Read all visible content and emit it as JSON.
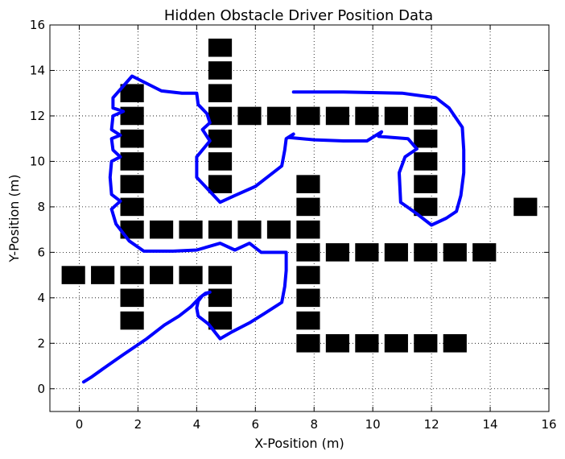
{
  "chart_data": {
    "type": "scatter",
    "title": "Hidden Obstacle Driver Position Data",
    "xlabel": "X-Position (m)",
    "ylabel": "Y-Position (m)",
    "xlim": [
      -1,
      16
    ],
    "ylim": [
      -1,
      16
    ],
    "xticks": [
      0,
      2,
      4,
      6,
      8,
      10,
      12,
      14,
      16
    ],
    "yticks": [
      0,
      2,
      4,
      6,
      8,
      10,
      12,
      14,
      16
    ],
    "grid": true,
    "obstacle_size": [
      0.8,
      0.8
    ],
    "obstacle_color": "#000000",
    "path_color": "#0000ff",
    "obstacles": [
      [
        4.8,
        15
      ],
      [
        4.8,
        14
      ],
      [
        4.8,
        13
      ],
      [
        4.8,
        12
      ],
      [
        4.8,
        11
      ],
      [
        4.8,
        10
      ],
      [
        4.8,
        9
      ],
      [
        1.8,
        13
      ],
      [
        1.8,
        12
      ],
      [
        1.8,
        11
      ],
      [
        1.8,
        10
      ],
      [
        1.8,
        9
      ],
      [
        1.8,
        8
      ],
      [
        1.8,
        7
      ],
      [
        2.8,
        7
      ],
      [
        3.8,
        7
      ],
      [
        4.8,
        7
      ],
      [
        5.8,
        7
      ],
      [
        6.8,
        7
      ],
      [
        7.8,
        7
      ],
      [
        5.8,
        12
      ],
      [
        6.8,
        12
      ],
      [
        7.8,
        12
      ],
      [
        8.8,
        12
      ],
      [
        9.8,
        12
      ],
      [
        10.8,
        12
      ],
      [
        11.8,
        12
      ],
      [
        11.8,
        11
      ],
      [
        11.8,
        10
      ],
      [
        11.8,
        9
      ],
      [
        11.8,
        8
      ],
      [
        15.2,
        8
      ],
      [
        7.8,
        9
      ],
      [
        7.8,
        8
      ],
      [
        7.8,
        6
      ],
      [
        7.8,
        5
      ],
      [
        7.8,
        4
      ],
      [
        7.8,
        3
      ],
      [
        7.8,
        2
      ],
      [
        8.8,
        6
      ],
      [
        9.8,
        6
      ],
      [
        10.8,
        6
      ],
      [
        11.8,
        6
      ],
      [
        12.8,
        6
      ],
      [
        13.8,
        6
      ],
      [
        8.8,
        2
      ],
      [
        9.8,
        2
      ],
      [
        10.8,
        2
      ],
      [
        11.8,
        2
      ],
      [
        12.8,
        2
      ],
      [
        -0.2,
        5
      ],
      [
        0.8,
        5
      ],
      [
        1.8,
        5
      ],
      [
        2.8,
        5
      ],
      [
        3.8,
        5
      ],
      [
        4.8,
        5
      ],
      [
        1.8,
        4
      ],
      [
        1.8,
        3
      ],
      [
        4.8,
        4
      ],
      [
        4.8,
        3
      ]
    ],
    "path": [
      [
        0.15,
        0.3
      ],
      [
        0.4,
        0.5
      ],
      [
        1.0,
        1.05
      ],
      [
        1.5,
        1.5
      ],
      [
        2.3,
        2.2
      ],
      [
        2.9,
        2.8
      ],
      [
        3.4,
        3.2
      ],
      [
        3.8,
        3.6
      ],
      [
        4.1,
        4.0
      ],
      [
        4.3,
        4.2
      ],
      [
        4.45,
        4.25
      ],
      [
        4.2,
        4.1
      ],
      [
        4.05,
        3.85
      ],
      [
        4.0,
        3.55
      ],
      [
        4.05,
        3.2
      ],
      [
        4.4,
        2.85
      ],
      [
        4.8,
        2.2
      ],
      [
        5.2,
        2.5
      ],
      [
        5.8,
        2.9
      ],
      [
        6.3,
        3.3
      ],
      [
        6.9,
        3.8
      ],
      [
        7.0,
        4.5
      ],
      [
        7.05,
        5.2
      ],
      [
        7.05,
        6.0
      ],
      [
        6.2,
        6.0
      ],
      [
        5.8,
        6.4
      ],
      [
        5.3,
        6.1
      ],
      [
        4.8,
        6.4
      ],
      [
        4.0,
        6.1
      ],
      [
        3.2,
        6.05
      ],
      [
        2.2,
        6.05
      ],
      [
        1.7,
        6.5
      ],
      [
        1.25,
        7.25
      ],
      [
        1.1,
        7.9
      ],
      [
        1.4,
        8.25
      ],
      [
        1.1,
        8.55
      ],
      [
        1.05,
        9.3
      ],
      [
        1.1,
        10.0
      ],
      [
        1.4,
        10.2
      ],
      [
        1.15,
        10.5
      ],
      [
        1.1,
        11.0
      ],
      [
        1.4,
        11.15
      ],
      [
        1.1,
        11.4
      ],
      [
        1.15,
        12.0
      ],
      [
        1.5,
        12.2
      ],
      [
        1.15,
        12.35
      ],
      [
        1.15,
        12.8
      ],
      [
        1.8,
        13.75
      ],
      [
        2.8,
        13.1
      ],
      [
        3.5,
        13.0
      ],
      [
        4.0,
        13.0
      ],
      [
        4.05,
        12.5
      ],
      [
        4.35,
        12.1
      ],
      [
        4.45,
        11.7
      ],
      [
        4.2,
        11.4
      ],
      [
        4.45,
        10.9
      ],
      [
        4.0,
        10.2
      ],
      [
        4.0,
        9.3
      ],
      [
        4.8,
        8.2
      ],
      [
        5.3,
        8.5
      ],
      [
        6.0,
        8.9
      ],
      [
        6.4,
        9.3
      ],
      [
        6.9,
        9.8
      ],
      [
        7.0,
        10.5
      ],
      [
        7.05,
        11.0
      ],
      [
        7.3,
        11.2
      ],
      [
        7.15,
        11.05
      ],
      [
        8.0,
        10.95
      ],
      [
        9.0,
        10.9
      ],
      [
        9.8,
        10.9
      ],
      [
        10.3,
        11.3
      ],
      [
        10.2,
        11.1
      ],
      [
        11.2,
        11.0
      ],
      [
        11.5,
        10.55
      ],
      [
        11.1,
        10.2
      ],
      [
        10.9,
        9.5
      ],
      [
        10.95,
        8.2
      ],
      [
        11.5,
        7.7
      ],
      [
        12.0,
        7.2
      ],
      [
        12.5,
        7.5
      ],
      [
        12.85,
        7.8
      ],
      [
        13.0,
        8.5
      ],
      [
        13.1,
        9.5
      ],
      [
        13.1,
        10.5
      ],
      [
        13.05,
        11.5
      ],
      [
        12.6,
        12.35
      ],
      [
        12.15,
        12.8
      ],
      [
        11.0,
        13.0
      ],
      [
        9.0,
        13.05
      ],
      [
        7.3,
        13.05
      ]
    ]
  }
}
